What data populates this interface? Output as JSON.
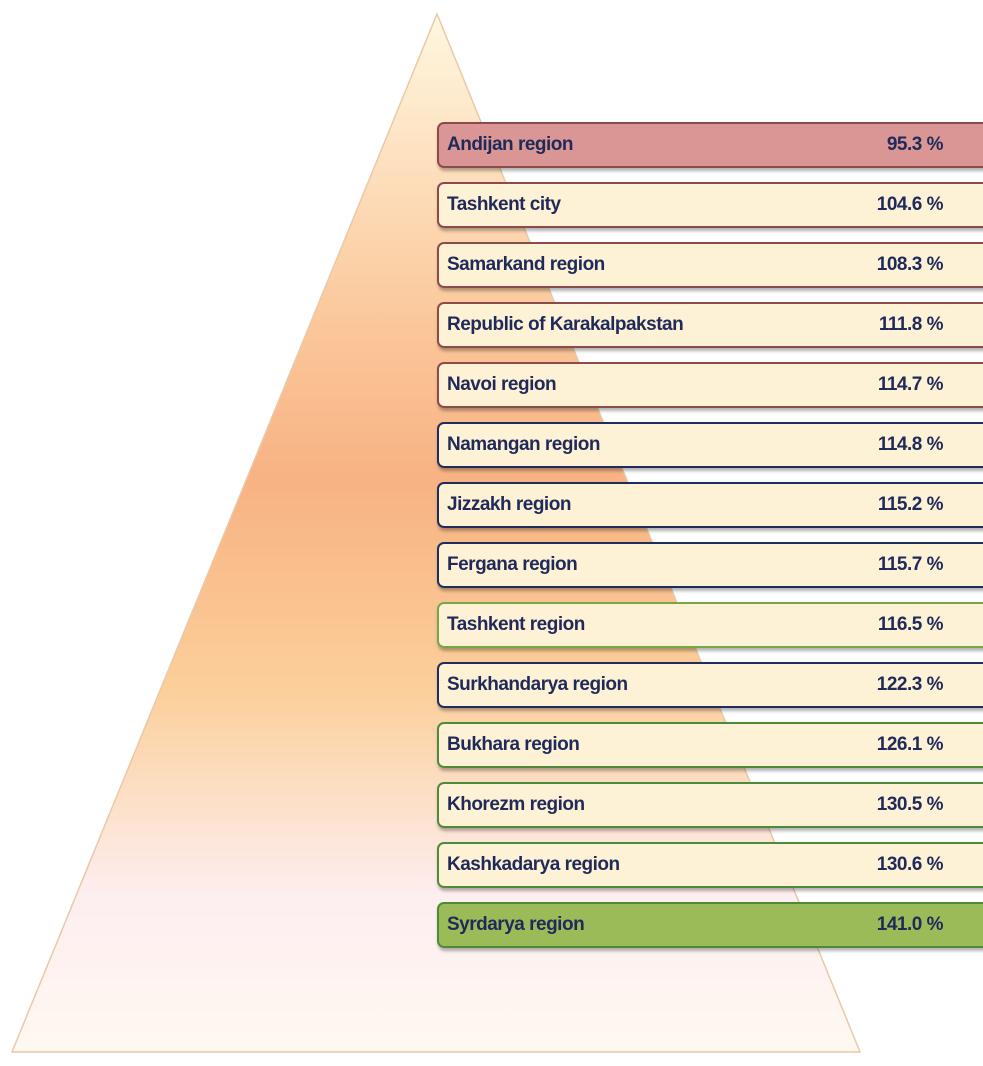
{
  "items": [
    {
      "label": "Andijan region",
      "value": "95.3 %",
      "border": "#8c4b4b",
      "fill": "#d99694"
    },
    {
      "label": "Tashkent  city",
      "value": "104.6 %",
      "border": "#8c4b4b",
      "fill": "#fdf1d6"
    },
    {
      "label": "Samarkand region",
      "value": "108.3 %",
      "border": "#8c4b4b",
      "fill": "#fdf1d6"
    },
    {
      "label": "Republic of Karakalpakstan",
      "value": "111.8 %",
      "border": "#8c4b4b",
      "fill": "#fdf1d6"
    },
    {
      "label": "Navoi region",
      "value": "114.7 %",
      "border": "#8c4b4b",
      "fill": "#fdf1d6"
    },
    {
      "label": "Namangan region",
      "value": "114.8 %",
      "border": "#1f2d5c",
      "fill": "#fdf1d6"
    },
    {
      "label": "Jizzakh region",
      "value": "115.2 %",
      "border": "#1f2d5c",
      "fill": "#fdf1d6"
    },
    {
      "label": "Fergana region",
      "value": "115.7 %",
      "border": "#1f2d5c",
      "fill": "#fdf1d6"
    },
    {
      "label": "Tashkent region",
      "value": "116.5 %",
      "border": "#77a844",
      "fill": "#fdf1d6"
    },
    {
      "label": "Surkhandarya region",
      "value": "122.3 %",
      "border": "#1f2d5c",
      "fill": "#fdf1d6"
    },
    {
      "label": "Bukhara region",
      "value": "126.1 %",
      "border": "#4f8a3a",
      "fill": "#fdf1d6"
    },
    {
      "label": "Khorezm region",
      "value": "130.5 %",
      "border": "#4f8a3a",
      "fill": "#fdf1d6"
    },
    {
      "label": "Kashkadarya region",
      "value": "130.6 %",
      "border": "#4f8a3a",
      "fill": "#fdf1d6"
    },
    {
      "label": "Syrdarya region",
      "value": "141.0 %",
      "border": "#4f8a3a",
      "fill": "#9bbb59"
    }
  ]
}
